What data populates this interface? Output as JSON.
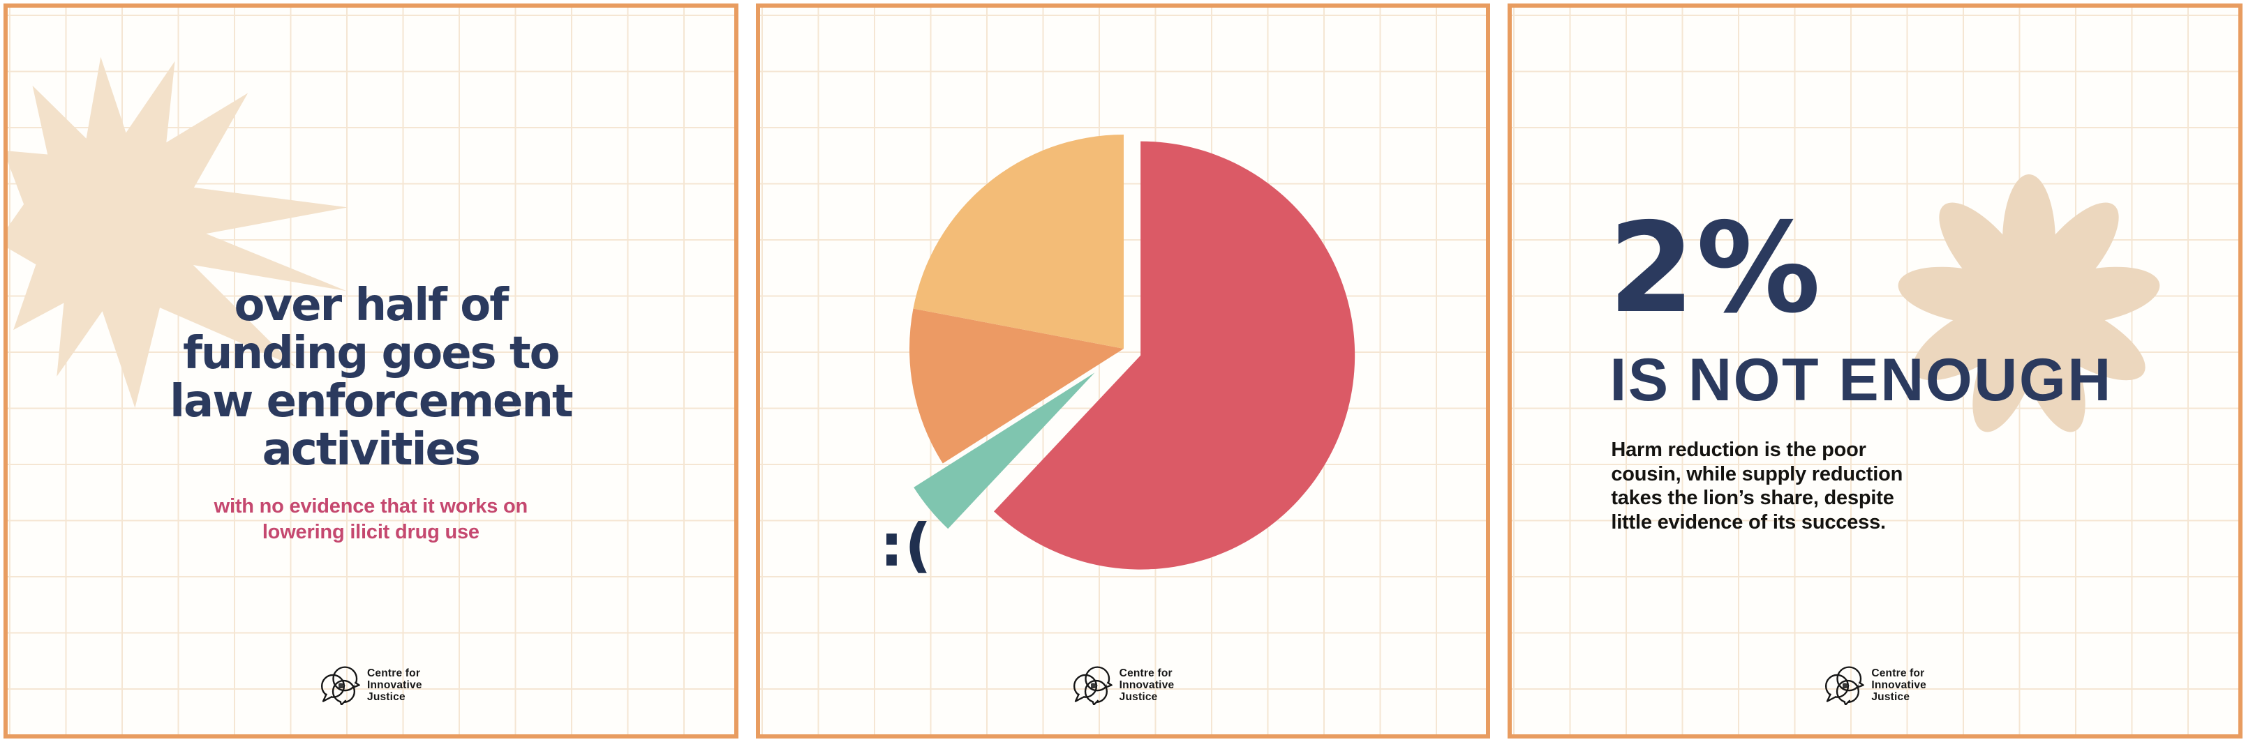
{
  "theme": {
    "card_border": "#E89C60",
    "grid_line": "#F5E6D3",
    "navy": "#2B3A5E",
    "pink": "#C5486F",
    "beige_star": "#F3E1CA",
    "beige_flower": "#ECD7BE",
    "body_black": "#141310"
  },
  "panels": [
    {
      "id": "funding-panel",
      "headline_lines": [
        "over half of",
        "funding goes to",
        "law enforcement",
        "activities"
      ],
      "subtext_lines": [
        "with no evidence that it works on",
        "lowering ilicit drug use"
      ]
    },
    {
      "id": "pie-panel",
      "sad_face": ":("
    },
    {
      "id": "two-percent-panel",
      "stat": "2%",
      "stat_caption": "IS NOT ENOUGH",
      "body_lines": [
        "Harm reduction is the poor",
        "cousin, while supply reduction",
        "takes the lion’s share, despite",
        "little evidence of its success."
      ]
    }
  ],
  "logo": {
    "lines": [
      "Centre for",
      "Innovative",
      "Justice"
    ]
  },
  "chart_data": {
    "type": "pie",
    "title": "",
    "direction": "clockwise",
    "start_angle_deg": 0,
    "legend": "none",
    "annotation": ":(",
    "segments": [
      {
        "name": "largest-slice",
        "value": 62,
        "color": "#DB5A66",
        "exploded": "slight"
      },
      {
        "name": "smallest-slice",
        "value": 4,
        "color": "#7FC5AF",
        "exploded": "pulled-out"
      },
      {
        "name": "mid-orange-slice",
        "value": 12,
        "color": "#EC9A64",
        "exploded": "none"
      },
      {
        "name": "light-orange-slice",
        "value": 22,
        "color": "#F3BC77",
        "exploded": "none"
      }
    ]
  }
}
